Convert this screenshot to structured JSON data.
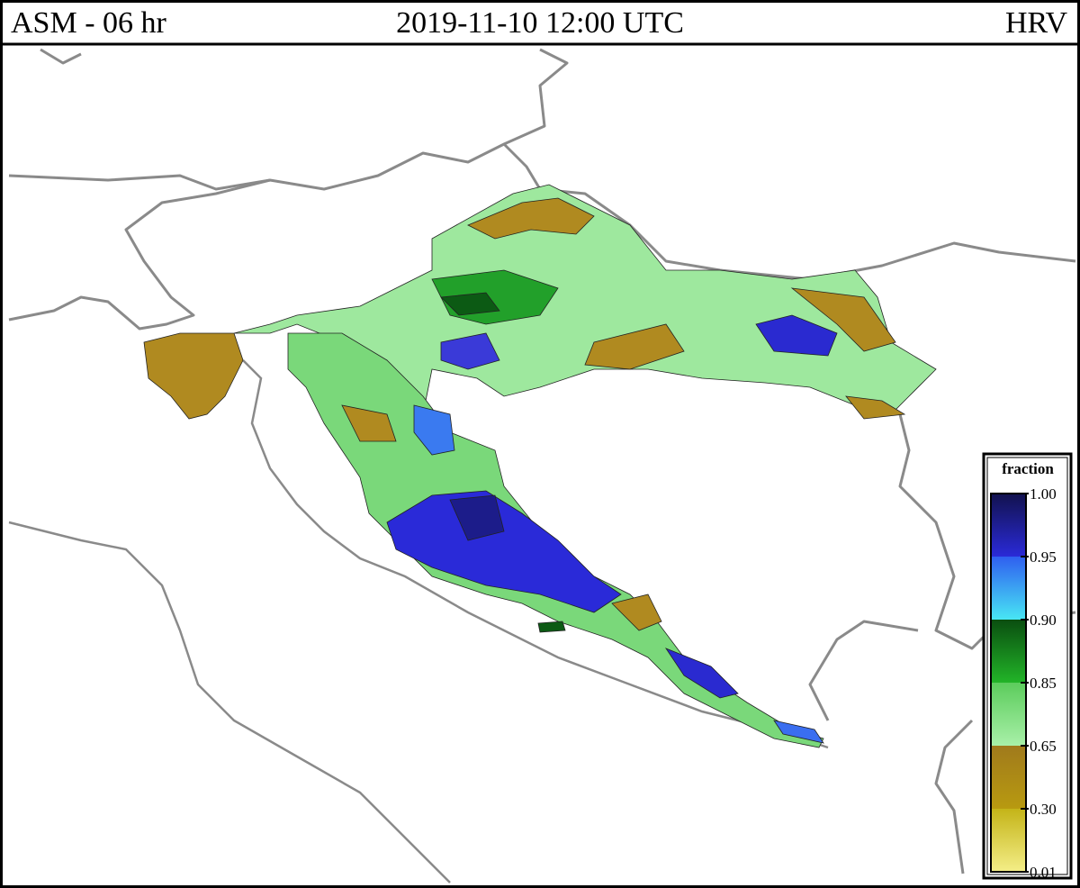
{
  "header": {
    "left": "ASM - 06 hr",
    "center": "2019-11-10 12:00 UTC",
    "right": "HRV"
  },
  "legend": {
    "title": "fraction",
    "ticks": [
      {
        "value": 1,
        "label": "1.00"
      },
      {
        "value": 0.95,
        "label": "0.95"
      },
      {
        "value": 0.9,
        "label": "0.90"
      },
      {
        "value": 0.85,
        "label": "0.85"
      },
      {
        "value": 0.65,
        "label": "0.65"
      },
      {
        "value": 0.3,
        "label": "0.30"
      },
      {
        "value": 0.01,
        "label": "0.01"
      }
    ],
    "colors": [
      [
        "#12124e",
        "#2a2ad8"
      ],
      [
        "#2f5ff0",
        "#48e6f4"
      ],
      [
        "#0a4e10",
        "#22b428"
      ],
      [
        "#5ccc5c",
        "#a8f0a8"
      ],
      [
        "#a07a1c",
        "#b89a10"
      ],
      [
        "#c4b418",
        "#f4ee88"
      ]
    ]
  }
}
